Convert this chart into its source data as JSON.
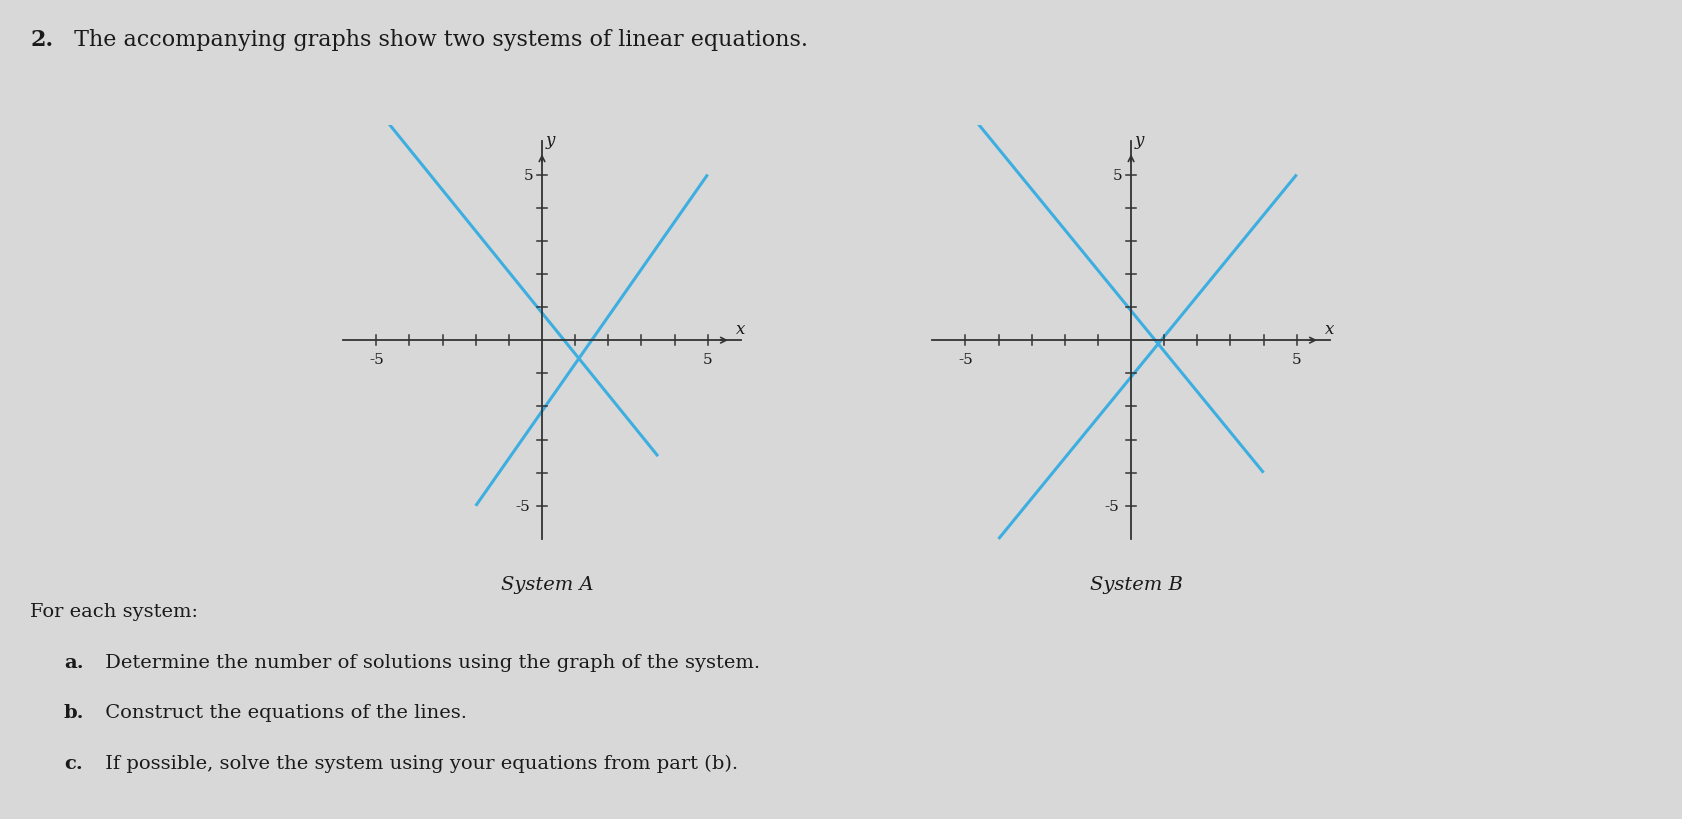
{
  "background_color": "#d8d8d8",
  "title_bold": "2.",
  "title_rest": " The accompanying graphs show two systems of linear equations.",
  "title_fontsize": 16,
  "text_color": "#1a1a1a",
  "line_color": "#3daee0",
  "line_width": 2.2,
  "axis_color": "#333333",
  "tick_size": 0.15,
  "tick_positions": [
    -4,
    -3,
    -2,
    -1,
    1,
    2,
    3,
    4
  ],
  "system_A_label": "System A",
  "system_B_label": "System B",
  "system_A_lines": [
    {
      "x": [
        -5,
        3.5
      ],
      "y": [
        7,
        -3.5
      ]
    },
    {
      "x": [
        -2,
        5
      ],
      "y": [
        -5,
        5
      ]
    }
  ],
  "system_B_lines": [
    {
      "x": [
        -5,
        4
      ],
      "y": [
        7,
        -4
      ]
    },
    {
      "x": [
        -4,
        5
      ],
      "y": [
        -6,
        5
      ]
    }
  ],
  "for_each": "For each system:",
  "line_a_bold": "a.",
  "line_a_text": " Determine the number of solutions using the graph of the system.",
  "line_b_bold": "b.",
  "line_b_text": " Construct the equations of the lines.",
  "line_c_bold": "c.",
  "line_c_text": " If possible, solve the system using your equations from part (b).",
  "fig_width": 16.83,
  "fig_height": 8.2
}
